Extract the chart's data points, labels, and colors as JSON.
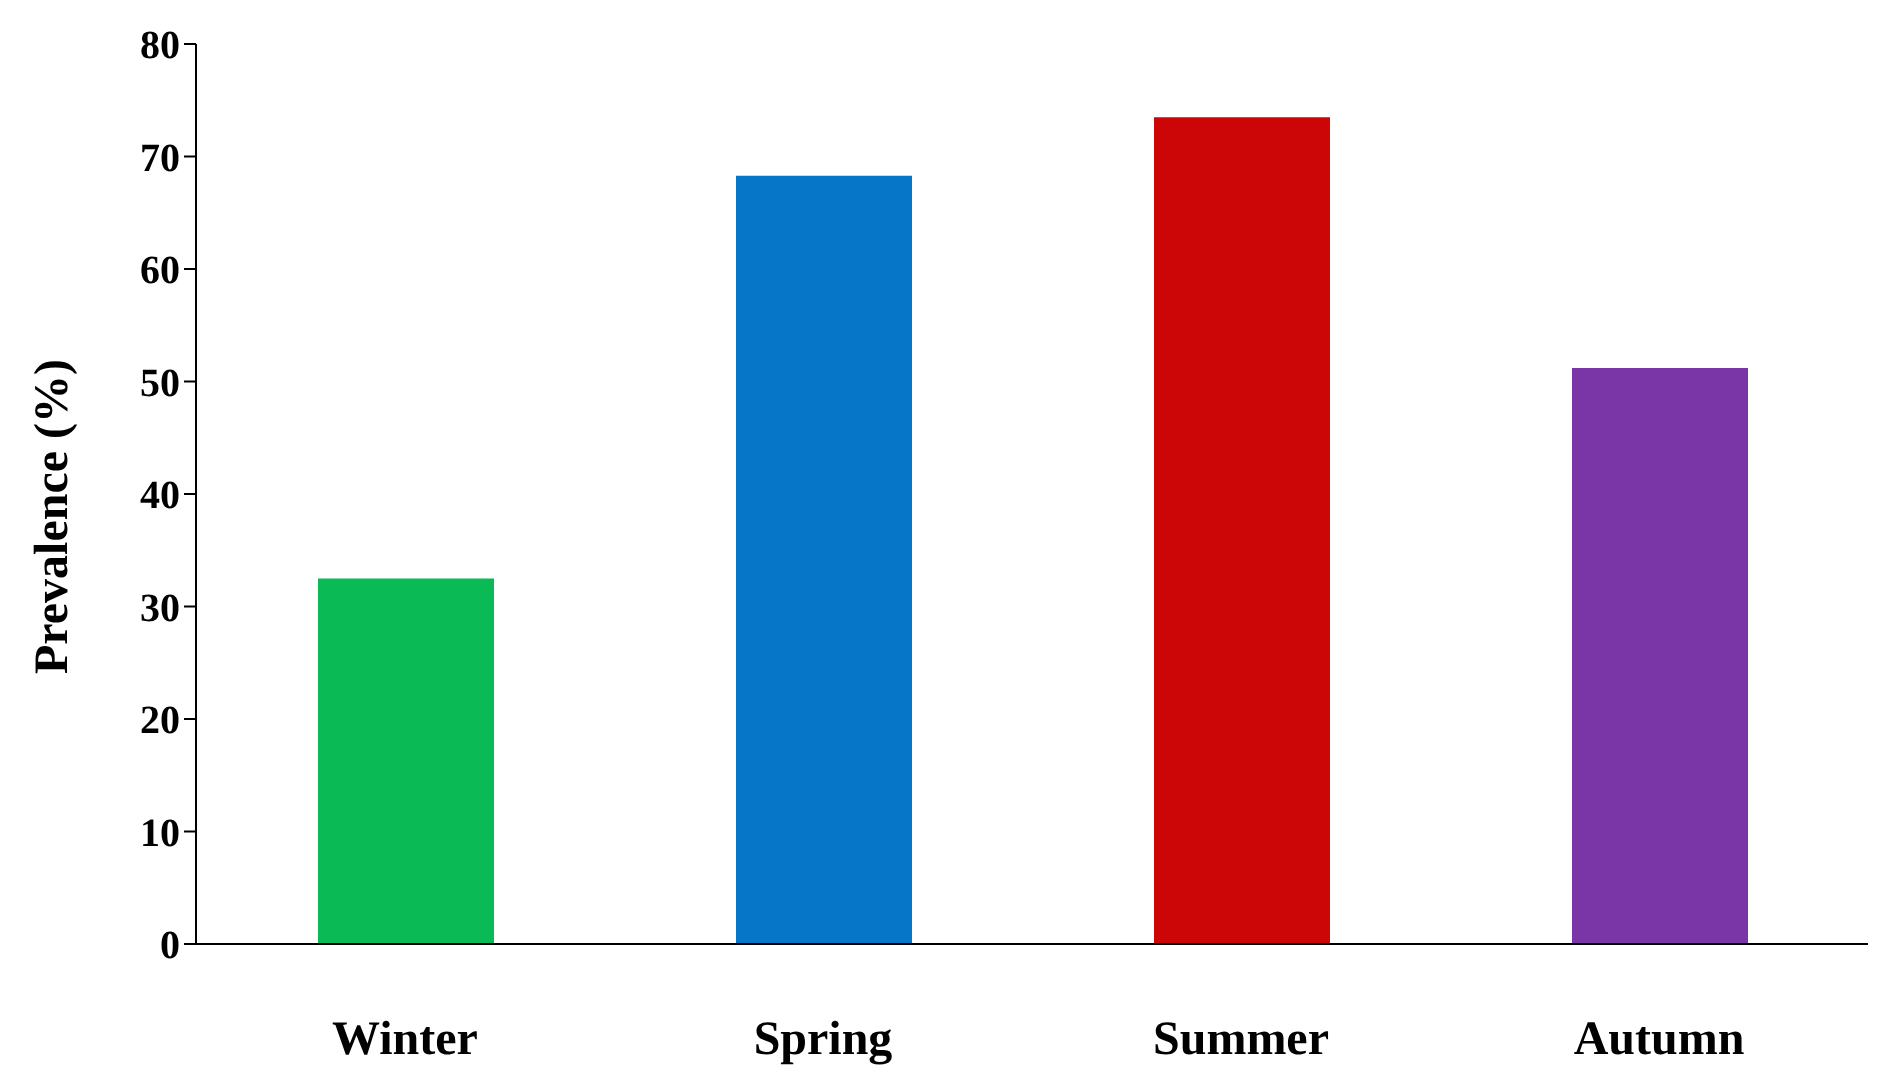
{
  "chart_data": {
    "type": "bar",
    "ylabel": "Prevalence (%)",
    "categories": [
      "Winter",
      "Spring",
      "Summer",
      "Autumn"
    ],
    "values": [
      32.5,
      68.3,
      73.5,
      51.2
    ],
    "colors": [
      "#0abb55",
      "#0676c8",
      "#cc0606",
      "#7a35a6"
    ],
    "ylim": [
      0,
      80
    ],
    "yticks": [
      0,
      10,
      20,
      30,
      40,
      50,
      60,
      70,
      80
    ],
    "grid": false,
    "legend": false
  }
}
